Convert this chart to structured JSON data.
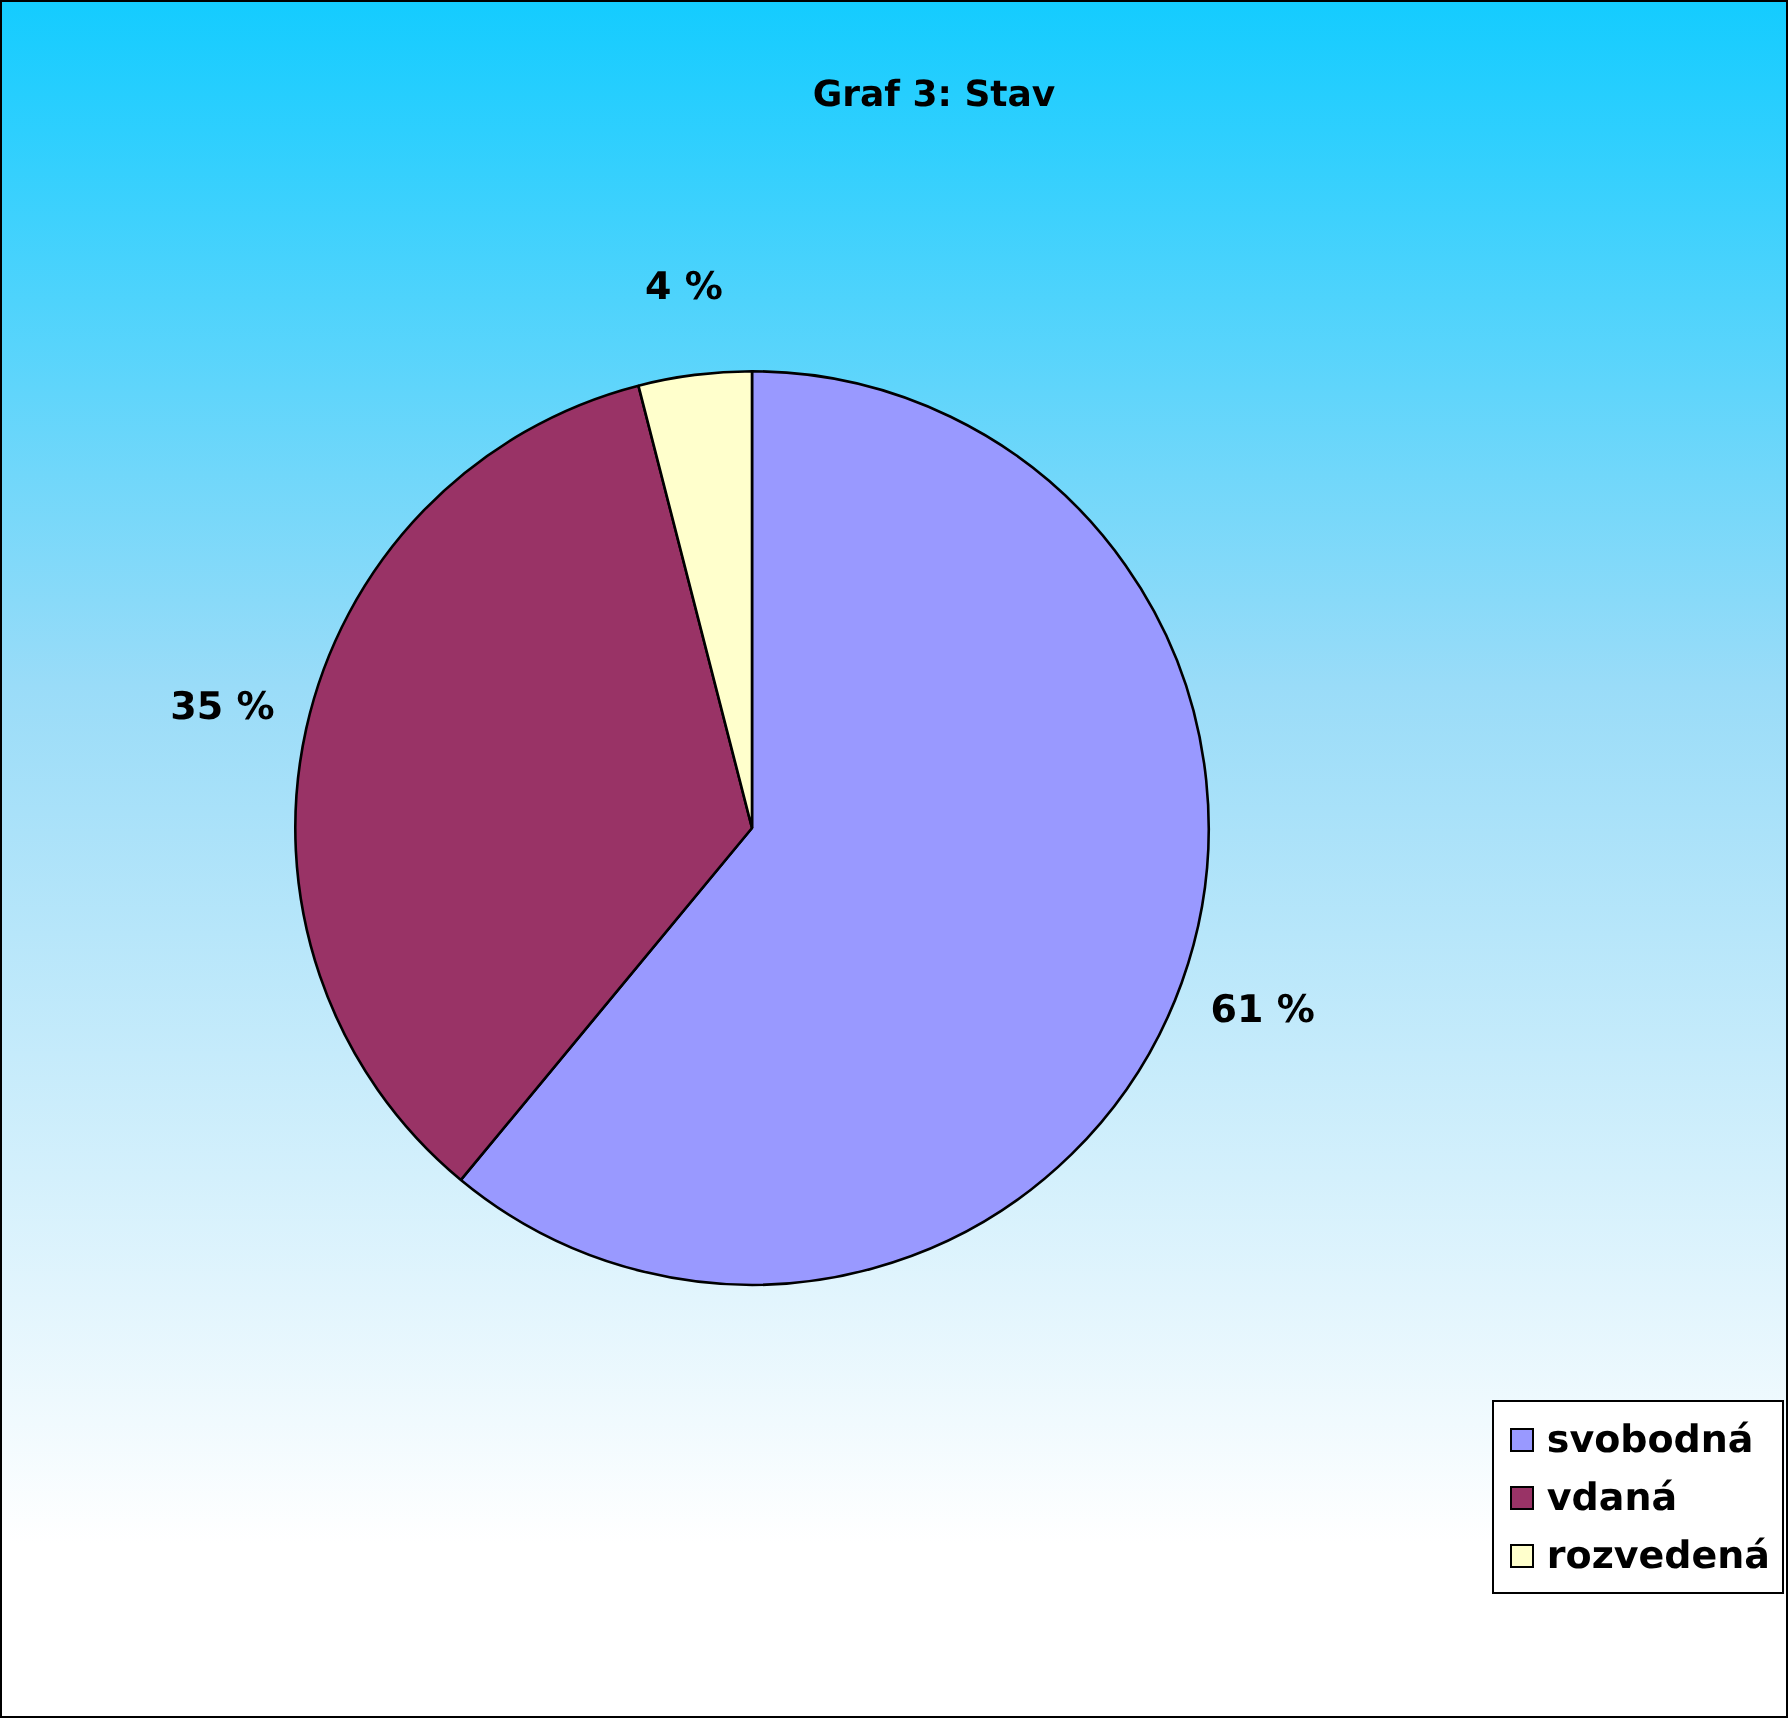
{
  "chart_data": {
    "type": "pie",
    "title": "Graf 3: Stav",
    "categories": [
      "svobodná",
      "vdaná",
      "rozvedená"
    ],
    "values": [
      61,
      35,
      4
    ],
    "colors": [
      "#9999ff",
      "#993366",
      "#ffffcc"
    ],
    "value_labels": [
      "61 %",
      "35 %",
      "4 %"
    ],
    "legend": "bottom right"
  }
}
